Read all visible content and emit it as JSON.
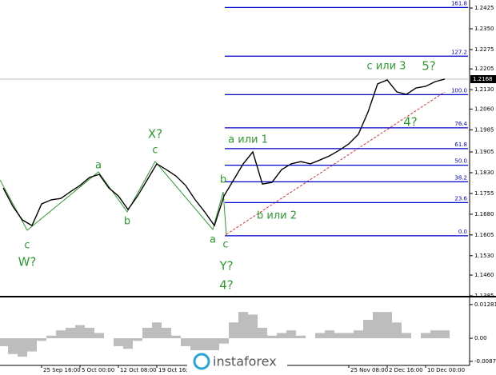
{
  "chart_data": [
    {
      "type": "line",
      "categories": [
        null,
        null,
        null,
        null,
        "25 Sep 16:00",
        null,
        null,
        null,
        "5 Oct 00:00",
        null,
        null,
        null,
        "12 Oct 08:00",
        null,
        null,
        null,
        "19 Oct 16:00",
        null,
        null,
        null,
        null,
        null,
        null,
        null,
        null,
        null,
        null,
        null,
        null,
        null,
        null,
        null,
        null,
        null,
        null,
        null,
        "25 Nov 08:00",
        null,
        null,
        null,
        "2 Dec 16:00",
        null,
        null,
        null,
        "10 Dec 00:00",
        null,
        null
      ],
      "series": [
        {
          "color": "#000000",
          "values": [
            1.1775,
            1.1709,
            1.1659,
            1.1639,
            1.1717,
            1.1732,
            1.1737,
            1.1761,
            1.1784,
            1.1813,
            1.1824,
            1.1775,
            1.1746,
            1.1697,
            1.1746,
            1.1804,
            1.1862,
            1.1841,
            1.1818,
            1.1784,
            1.1732,
            1.1688,
            1.1639,
            1.1746,
            1.1804,
            1.1862,
            1.1905,
            1.1789,
            1.1795,
            1.1841,
            1.1862,
            1.187,
            1.1862,
            1.1876,
            1.1891,
            1.1911,
            1.1934,
            1.1969,
            1.2049,
            1.2151,
            1.2165,
            1.2122,
            1.2113,
            1.2136,
            1.2142,
            1.2159,
            1.2168
          ]
        }
      ],
      "ylim": [
        1.1385,
        1.2454
      ],
      "yticks": [
        1.2425,
        {
          "value": 1.235,
          "label": "1.2350"
        },
        1.2275,
        1.2205,
        {
          "value": 1.213,
          "label": "1.2130"
        },
        {
          "value": 1.206,
          "label": "1.2060"
        },
        1.1985,
        1.1905,
        {
          "value": 1.183,
          "label": "1.1830"
        },
        1.1755,
        {
          "value": 1.168,
          "label": "1.1680"
        },
        1.1605,
        {
          "value": 1.153,
          "label": "1.1530"
        },
        {
          "value": 1.146,
          "label": "1.1460"
        },
        1.1385
      ],
      "current_price": 1.2168,
      "fib_color": "#0000cc",
      "fib_levels": [
        {
          "label": "161.8",
          "value": 1.2427
        },
        {
          "label": "127.2",
          "value": 1.2251
        },
        {
          "label": "100.0",
          "value": 1.2112
        },
        {
          "label": "76.4",
          "value": 1.1992
        },
        {
          "label": "61.8",
          "value": 1.1917
        },
        {
          "label": "50.0",
          "value": 1.1857
        },
        {
          "label": "38.2",
          "value": 1.1797
        },
        {
          "label": "23.6",
          "value": 1.1722
        },
        {
          "label": "0.0",
          "value": 1.1602
        }
      ],
      "annotations": [
        "c или 3",
        "5?",
        "4?",
        "a или 1",
        "b или 2",
        "b",
        "c",
        "a",
        "Y?",
        "4?",
        "X?",
        "c",
        "a",
        "b",
        "c",
        "W?"
      ]
    },
    {
      "type": "bar",
      "series": [
        {
          "color": "#bdbdbd",
          "values": [
            -0.003,
            -0.006,
            -0.007,
            -0.005,
            -0.001,
            0.001,
            0.003,
            0.004,
            0.005,
            0.004,
            0.002,
            0.0,
            -0.003,
            -0.004,
            -0.001,
            0.004,
            0.006,
            0.004,
            0.001,
            -0.003,
            -0.007,
            -0.008,
            -0.006,
            -0.002,
            0.006,
            0.01,
            0.009,
            0.004,
            0.001,
            0.002,
            0.003,
            0.001,
            0.0,
            0.002,
            0.003,
            0.002,
            0.002,
            0.003,
            0.007,
            0.01,
            0.01,
            0.006,
            0.002,
            0.0,
            0.002,
            0.003,
            0.003
          ]
        }
      ],
      "ylim": [
        -0.0097,
        0.0146
      ],
      "yticks": [
        0.01281,
        {
          "value": 0,
          "label": "0.00"
        },
        -0.00876
      ]
    }
  ],
  "logo": "instaforex"
}
